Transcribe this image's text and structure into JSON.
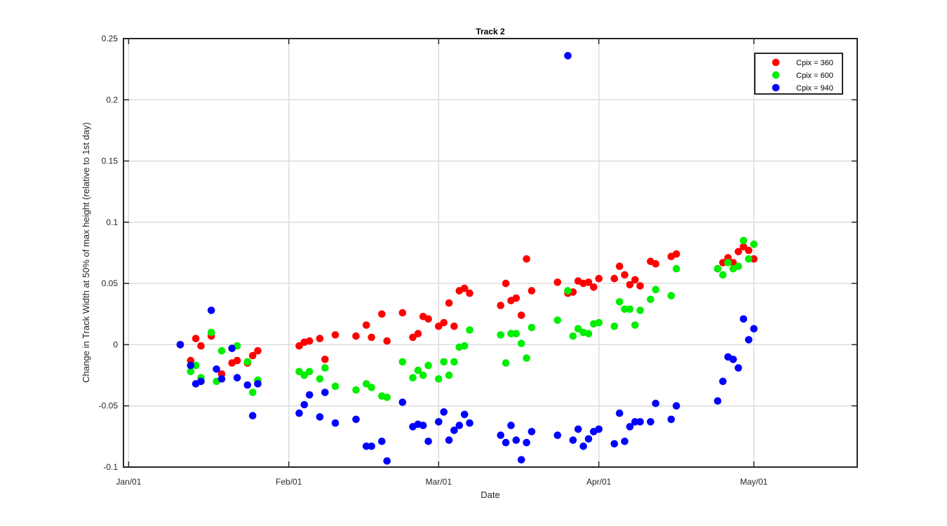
{
  "chart_data": {
    "type": "scatter",
    "title": "Track 2",
    "xlabel": "Date",
    "ylabel": "Change in Track Width at 50% of max height (relative to 1st day)",
    "xlim": [
      "2023-12-31",
      "2024-05-21"
    ],
    "ylim": [
      -0.1,
      0.25
    ],
    "x_ticks": [
      {
        "value": "2024-01-01",
        "label": "Jan/01"
      },
      {
        "value": "2024-02-01",
        "label": "Feb/01"
      },
      {
        "value": "2024-03-01",
        "label": "Mar/01"
      },
      {
        "value": "2024-04-01",
        "label": "Apr/01"
      },
      {
        "value": "2024-05-01",
        "label": "May/01"
      }
    ],
    "y_ticks": [
      {
        "value": -0.1,
        "label": "-0.1"
      },
      {
        "value": -0.05,
        "label": "-0.05"
      },
      {
        "value": 0,
        "label": "0"
      },
      {
        "value": 0.05,
        "label": "0.05"
      },
      {
        "value": 0.1,
        "label": "0.1"
      },
      {
        "value": 0.15,
        "label": "0.15"
      },
      {
        "value": 0.2,
        "label": "0.2"
      },
      {
        "value": 0.25,
        "label": "0.25"
      }
    ],
    "grid": true,
    "legend_position": "top-right",
    "series": [
      {
        "name": "Cpix = 360",
        "color": "#ff0000",
        "points": [
          [
            "2024-01-11",
            0.0
          ],
          [
            "2024-01-13",
            -0.013
          ],
          [
            "2024-01-14",
            0.005
          ],
          [
            "2024-01-15",
            -0.001
          ],
          [
            "2024-01-17",
            0.007
          ],
          [
            "2024-01-19",
            -0.024
          ],
          [
            "2024-01-21",
            -0.015
          ],
          [
            "2024-01-22",
            -0.013
          ],
          [
            "2024-01-24",
            -0.015
          ],
          [
            "2024-01-25",
            -0.009
          ],
          [
            "2024-01-26",
            -0.005
          ],
          [
            "2024-02-03",
            -0.001
          ],
          [
            "2024-02-04",
            0.002
          ],
          [
            "2024-02-05",
            0.003
          ],
          [
            "2024-02-07",
            0.005
          ],
          [
            "2024-02-08",
            -0.012
          ],
          [
            "2024-02-10",
            0.008
          ],
          [
            "2024-02-14",
            0.007
          ],
          [
            "2024-02-16",
            0.016
          ],
          [
            "2024-02-17",
            0.006
          ],
          [
            "2024-02-19",
            0.025
          ],
          [
            "2024-02-20",
            0.003
          ],
          [
            "2024-02-23",
            0.026
          ],
          [
            "2024-02-25",
            0.006
          ],
          [
            "2024-02-26",
            0.009
          ],
          [
            "2024-02-27",
            0.023
          ],
          [
            "2024-02-28",
            0.021
          ],
          [
            "2024-03-01",
            0.015
          ],
          [
            "2024-03-02",
            0.018
          ],
          [
            "2024-03-03",
            0.034
          ],
          [
            "2024-03-04",
            0.015
          ],
          [
            "2024-03-05",
            0.044
          ],
          [
            "2024-03-06",
            0.046
          ],
          [
            "2024-03-07",
            0.042
          ],
          [
            "2024-03-13",
            0.032
          ],
          [
            "2024-03-14",
            0.05
          ],
          [
            "2024-03-15",
            0.036
          ],
          [
            "2024-03-16",
            0.038
          ],
          [
            "2024-03-17",
            0.024
          ],
          [
            "2024-03-18",
            0.07
          ],
          [
            "2024-03-19",
            0.044
          ],
          [
            "2024-03-24",
            0.051
          ],
          [
            "2024-03-26",
            0.042
          ],
          [
            "2024-03-27",
            0.043
          ],
          [
            "2024-03-28",
            0.052
          ],
          [
            "2024-03-29",
            0.05
          ],
          [
            "2024-03-30",
            0.051
          ],
          [
            "2024-03-31",
            0.047
          ],
          [
            "2024-04-01",
            0.054
          ],
          [
            "2024-04-04",
            0.054
          ],
          [
            "2024-04-05",
            0.064
          ],
          [
            "2024-04-06",
            0.057
          ],
          [
            "2024-04-07",
            0.049
          ],
          [
            "2024-04-08",
            0.053
          ],
          [
            "2024-04-09",
            0.048
          ],
          [
            "2024-04-11",
            0.068
          ],
          [
            "2024-04-12",
            0.066
          ],
          [
            "2024-04-15",
            0.072
          ],
          [
            "2024-04-16",
            0.074
          ],
          [
            "2024-04-24",
            0.062
          ],
          [
            "2024-04-25",
            0.067
          ],
          [
            "2024-04-26",
            0.071
          ],
          [
            "2024-04-27",
            0.067
          ],
          [
            "2024-04-28",
            0.076
          ],
          [
            "2024-04-29",
            0.08
          ],
          [
            "2024-04-30",
            0.077
          ],
          [
            "2024-05-01",
            0.07
          ]
        ]
      },
      {
        "name": "Cpix = 600",
        "color": "#00ee00",
        "points": [
          [
            "2024-01-13",
            -0.022
          ],
          [
            "2024-01-14",
            -0.017
          ],
          [
            "2024-01-15",
            -0.027
          ],
          [
            "2024-01-17",
            0.01
          ],
          [
            "2024-01-18",
            -0.03
          ],
          [
            "2024-01-19",
            -0.005
          ],
          [
            "2024-01-22",
            -0.001
          ],
          [
            "2024-01-24",
            -0.014
          ],
          [
            "2024-01-25",
            -0.039
          ],
          [
            "2024-01-26",
            -0.029
          ],
          [
            "2024-02-03",
            -0.022
          ],
          [
            "2024-02-04",
            -0.025
          ],
          [
            "2024-02-05",
            -0.022
          ],
          [
            "2024-02-07",
            -0.028
          ],
          [
            "2024-02-08",
            -0.019
          ],
          [
            "2024-02-10",
            -0.034
          ],
          [
            "2024-02-14",
            -0.037
          ],
          [
            "2024-02-16",
            -0.032
          ],
          [
            "2024-02-17",
            -0.035
          ],
          [
            "2024-02-19",
            -0.042
          ],
          [
            "2024-02-20",
            -0.043
          ],
          [
            "2024-02-23",
            -0.014
          ],
          [
            "2024-02-25",
            -0.027
          ],
          [
            "2024-02-26",
            -0.021
          ],
          [
            "2024-02-27",
            -0.025
          ],
          [
            "2024-02-28",
            -0.017
          ],
          [
            "2024-03-01",
            -0.028
          ],
          [
            "2024-03-02",
            -0.014
          ],
          [
            "2024-03-03",
            -0.025
          ],
          [
            "2024-03-04",
            -0.014
          ],
          [
            "2024-03-05",
            -0.002
          ],
          [
            "2024-03-06",
            -0.001
          ],
          [
            "2024-03-07",
            0.012
          ],
          [
            "2024-03-13",
            0.008
          ],
          [
            "2024-03-14",
            -0.015
          ],
          [
            "2024-03-15",
            0.009
          ],
          [
            "2024-03-16",
            0.009
          ],
          [
            "2024-03-17",
            0.001
          ],
          [
            "2024-03-18",
            -0.011
          ],
          [
            "2024-03-19",
            0.014
          ],
          [
            "2024-03-24",
            0.02
          ],
          [
            "2024-03-26",
            0.044
          ],
          [
            "2024-03-27",
            0.007
          ],
          [
            "2024-03-28",
            0.013
          ],
          [
            "2024-03-29",
            0.01
          ],
          [
            "2024-03-30",
            0.009
          ],
          [
            "2024-03-31",
            0.017
          ],
          [
            "2024-04-01",
            0.018
          ],
          [
            "2024-04-04",
            0.015
          ],
          [
            "2024-04-05",
            0.035
          ],
          [
            "2024-04-06",
            0.029
          ],
          [
            "2024-04-07",
            0.029
          ],
          [
            "2024-04-08",
            0.016
          ],
          [
            "2024-04-09",
            0.028
          ],
          [
            "2024-04-11",
            0.037
          ],
          [
            "2024-04-12",
            0.045
          ],
          [
            "2024-04-15",
            0.04
          ],
          [
            "2024-04-16",
            0.062
          ],
          [
            "2024-04-24",
            0.062
          ],
          [
            "2024-04-25",
            0.057
          ],
          [
            "2024-04-26",
            0.067
          ],
          [
            "2024-04-27",
            0.062
          ],
          [
            "2024-04-28",
            0.064
          ],
          [
            "2024-04-29",
            0.085
          ],
          [
            "2024-04-30",
            0.07
          ],
          [
            "2024-05-01",
            0.082
          ]
        ]
      },
      {
        "name": "Cpix = 940",
        "color": "#0000ff",
        "points": [
          [
            "2024-01-11",
            0.0
          ],
          [
            "2024-01-13",
            -0.017
          ],
          [
            "2024-01-14",
            -0.032
          ],
          [
            "2024-01-15",
            -0.03
          ],
          [
            "2024-01-17",
            0.028
          ],
          [
            "2024-01-18",
            -0.02
          ],
          [
            "2024-01-19",
            -0.028
          ],
          [
            "2024-01-21",
            -0.003
          ],
          [
            "2024-01-22",
            -0.027
          ],
          [
            "2024-01-24",
            -0.033
          ],
          [
            "2024-01-25",
            -0.058
          ],
          [
            "2024-01-26",
            -0.032
          ],
          [
            "2024-02-03",
            -0.056
          ],
          [
            "2024-02-04",
            -0.049
          ],
          [
            "2024-02-05",
            -0.041
          ],
          [
            "2024-02-07",
            -0.059
          ],
          [
            "2024-02-08",
            -0.039
          ],
          [
            "2024-02-10",
            -0.064
          ],
          [
            "2024-02-14",
            -0.061
          ],
          [
            "2024-02-16",
            -0.083
          ],
          [
            "2024-02-17",
            -0.083
          ],
          [
            "2024-02-19",
            -0.079
          ],
          [
            "2024-02-20",
            -0.095
          ],
          [
            "2024-02-23",
            -0.047
          ],
          [
            "2024-02-25",
            -0.067
          ],
          [
            "2024-02-26",
            -0.065
          ],
          [
            "2024-02-27",
            -0.066
          ],
          [
            "2024-02-28",
            -0.079
          ],
          [
            "2024-03-01",
            -0.063
          ],
          [
            "2024-03-02",
            -0.055
          ],
          [
            "2024-03-03",
            -0.078
          ],
          [
            "2024-03-04",
            -0.07
          ],
          [
            "2024-03-05",
            -0.066
          ],
          [
            "2024-03-06",
            -0.057
          ],
          [
            "2024-03-07",
            -0.064
          ],
          [
            "2024-03-13",
            -0.074
          ],
          [
            "2024-03-14",
            -0.08
          ],
          [
            "2024-03-15",
            -0.066
          ],
          [
            "2024-03-16",
            -0.078
          ],
          [
            "2024-03-17",
            -0.094
          ],
          [
            "2024-03-18",
            -0.08
          ],
          [
            "2024-03-19",
            -0.071
          ],
          [
            "2024-03-24",
            -0.074
          ],
          [
            "2024-03-26",
            0.236
          ],
          [
            "2024-03-27",
            -0.078
          ],
          [
            "2024-03-28",
            -0.069
          ],
          [
            "2024-03-29",
            -0.083
          ],
          [
            "2024-03-30",
            -0.077
          ],
          [
            "2024-03-31",
            -0.071
          ],
          [
            "2024-04-01",
            -0.069
          ],
          [
            "2024-04-04",
            -0.081
          ],
          [
            "2024-04-05",
            -0.056
          ],
          [
            "2024-04-06",
            -0.079
          ],
          [
            "2024-04-07",
            -0.067
          ],
          [
            "2024-04-08",
            -0.063
          ],
          [
            "2024-04-09",
            -0.063
          ],
          [
            "2024-04-11",
            -0.063
          ],
          [
            "2024-04-12",
            -0.048
          ],
          [
            "2024-04-15",
            -0.061
          ],
          [
            "2024-04-16",
            -0.05
          ],
          [
            "2024-04-24",
            -0.046
          ],
          [
            "2024-04-25",
            -0.03
          ],
          [
            "2024-04-26",
            -0.01
          ],
          [
            "2024-04-27",
            -0.012
          ],
          [
            "2024-04-28",
            -0.019
          ],
          [
            "2024-04-29",
            0.021
          ],
          [
            "2024-04-30",
            0.004
          ],
          [
            "2024-05-01",
            0.013
          ]
        ]
      }
    ]
  }
}
